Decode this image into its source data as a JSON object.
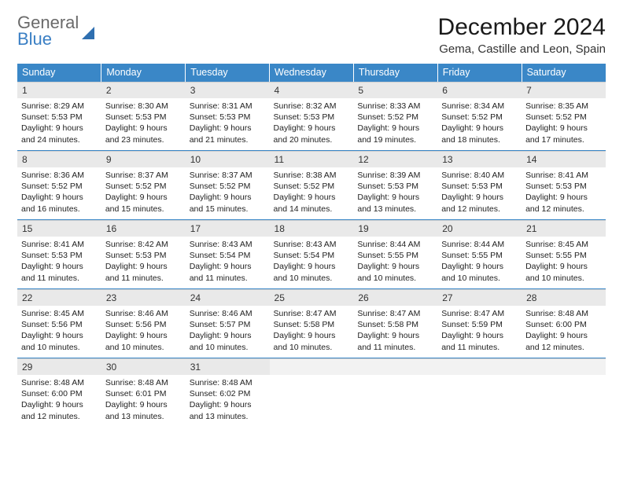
{
  "brand": {
    "word1": "General",
    "word2": "Blue"
  },
  "title": "December 2024",
  "location": "Gema, Castille and Leon, Spain",
  "columns": [
    "Sunday",
    "Monday",
    "Tuesday",
    "Wednesday",
    "Thursday",
    "Friday",
    "Saturday"
  ],
  "colors": {
    "header_bg": "#3a87c7",
    "header_text": "#ffffff",
    "daynum_bg": "#e9e9e9",
    "rule": "#3a87c7",
    "logo_gray": "#6a6a6a",
    "logo_blue": "#3a7fc4"
  },
  "weeks": [
    [
      {
        "n": "1",
        "sr": "8:29 AM",
        "ss": "5:53 PM",
        "dl": "9 hours and 24 minutes."
      },
      {
        "n": "2",
        "sr": "8:30 AM",
        "ss": "5:53 PM",
        "dl": "9 hours and 23 minutes."
      },
      {
        "n": "3",
        "sr": "8:31 AM",
        "ss": "5:53 PM",
        "dl": "9 hours and 21 minutes."
      },
      {
        "n": "4",
        "sr": "8:32 AM",
        "ss": "5:53 PM",
        "dl": "9 hours and 20 minutes."
      },
      {
        "n": "5",
        "sr": "8:33 AM",
        "ss": "5:52 PM",
        "dl": "9 hours and 19 minutes."
      },
      {
        "n": "6",
        "sr": "8:34 AM",
        "ss": "5:52 PM",
        "dl": "9 hours and 18 minutes."
      },
      {
        "n": "7",
        "sr": "8:35 AM",
        "ss": "5:52 PM",
        "dl": "9 hours and 17 minutes."
      }
    ],
    [
      {
        "n": "8",
        "sr": "8:36 AM",
        "ss": "5:52 PM",
        "dl": "9 hours and 16 minutes."
      },
      {
        "n": "9",
        "sr": "8:37 AM",
        "ss": "5:52 PM",
        "dl": "9 hours and 15 minutes."
      },
      {
        "n": "10",
        "sr": "8:37 AM",
        "ss": "5:52 PM",
        "dl": "9 hours and 15 minutes."
      },
      {
        "n": "11",
        "sr": "8:38 AM",
        "ss": "5:52 PM",
        "dl": "9 hours and 14 minutes."
      },
      {
        "n": "12",
        "sr": "8:39 AM",
        "ss": "5:53 PM",
        "dl": "9 hours and 13 minutes."
      },
      {
        "n": "13",
        "sr": "8:40 AM",
        "ss": "5:53 PM",
        "dl": "9 hours and 12 minutes."
      },
      {
        "n": "14",
        "sr": "8:41 AM",
        "ss": "5:53 PM",
        "dl": "9 hours and 12 minutes."
      }
    ],
    [
      {
        "n": "15",
        "sr": "8:41 AM",
        "ss": "5:53 PM",
        "dl": "9 hours and 11 minutes."
      },
      {
        "n": "16",
        "sr": "8:42 AM",
        "ss": "5:53 PM",
        "dl": "9 hours and 11 minutes."
      },
      {
        "n": "17",
        "sr": "8:43 AM",
        "ss": "5:54 PM",
        "dl": "9 hours and 11 minutes."
      },
      {
        "n": "18",
        "sr": "8:43 AM",
        "ss": "5:54 PM",
        "dl": "9 hours and 10 minutes."
      },
      {
        "n": "19",
        "sr": "8:44 AM",
        "ss": "5:55 PM",
        "dl": "9 hours and 10 minutes."
      },
      {
        "n": "20",
        "sr": "8:44 AM",
        "ss": "5:55 PM",
        "dl": "9 hours and 10 minutes."
      },
      {
        "n": "21",
        "sr": "8:45 AM",
        "ss": "5:55 PM",
        "dl": "9 hours and 10 minutes."
      }
    ],
    [
      {
        "n": "22",
        "sr": "8:45 AM",
        "ss": "5:56 PM",
        "dl": "9 hours and 10 minutes."
      },
      {
        "n": "23",
        "sr": "8:46 AM",
        "ss": "5:56 PM",
        "dl": "9 hours and 10 minutes."
      },
      {
        "n": "24",
        "sr": "8:46 AM",
        "ss": "5:57 PM",
        "dl": "9 hours and 10 minutes."
      },
      {
        "n": "25",
        "sr": "8:47 AM",
        "ss": "5:58 PM",
        "dl": "9 hours and 10 minutes."
      },
      {
        "n": "26",
        "sr": "8:47 AM",
        "ss": "5:58 PM",
        "dl": "9 hours and 11 minutes."
      },
      {
        "n": "27",
        "sr": "8:47 AM",
        "ss": "5:59 PM",
        "dl": "9 hours and 11 minutes."
      },
      {
        "n": "28",
        "sr": "8:48 AM",
        "ss": "6:00 PM",
        "dl": "9 hours and 12 minutes."
      }
    ],
    [
      {
        "n": "29",
        "sr": "8:48 AM",
        "ss": "6:00 PM",
        "dl": "9 hours and 12 minutes."
      },
      {
        "n": "30",
        "sr": "8:48 AM",
        "ss": "6:01 PM",
        "dl": "9 hours and 13 minutes."
      },
      {
        "n": "31",
        "sr": "8:48 AM",
        "ss": "6:02 PM",
        "dl": "9 hours and 13 minutes."
      },
      null,
      null,
      null,
      null
    ]
  ],
  "labels": {
    "sunrise": "Sunrise:",
    "sunset": "Sunset:",
    "daylight": "Daylight:"
  }
}
